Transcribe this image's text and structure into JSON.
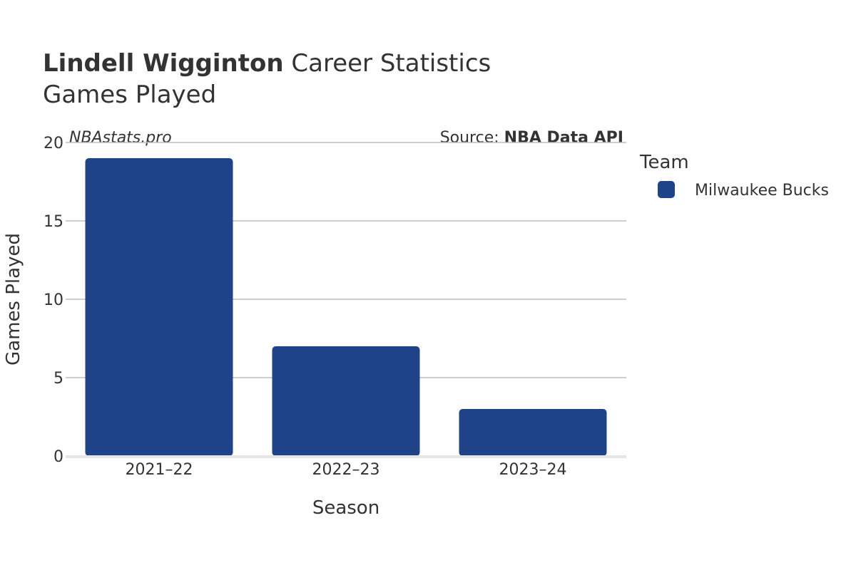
{
  "title": {
    "player_name": "Lindell Wigginton",
    "suffix": " Career Statistics",
    "subtitle": "Games Played"
  },
  "watermark": "NBAstats.pro",
  "source": {
    "prefix": "Source: ",
    "name": "NBA Data API"
  },
  "legend": {
    "title": "Team",
    "items": [
      {
        "label": "Milwaukee Bucks",
        "color": "#1f4388"
      }
    ]
  },
  "colors": {
    "bar": "#1f4388",
    "grid": "#bdbdbd",
    "baseline": "#e6e6e6",
    "text": "#333333"
  },
  "chart_data": {
    "type": "bar",
    "categories": [
      "2021–22",
      "2022–23",
      "2023–24"
    ],
    "series": [
      {
        "name": "Milwaukee Bucks",
        "values": [
          19,
          7,
          3
        ]
      }
    ],
    "xlabel": "Season",
    "ylabel": "Games Played",
    "ylim": [
      0,
      20
    ],
    "yticks": [
      0,
      5,
      10,
      15,
      20
    ],
    "grid": true,
    "legend_position": "right"
  }
}
